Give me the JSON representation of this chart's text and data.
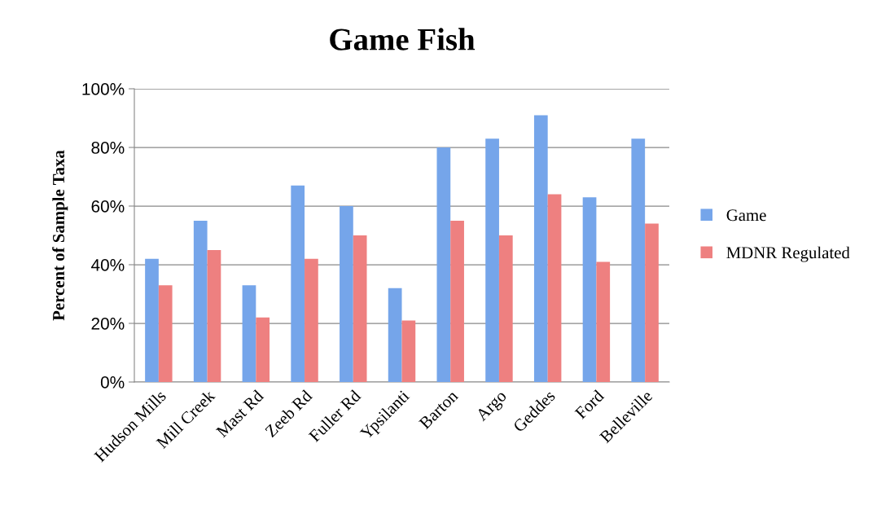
{
  "chart_data": {
    "type": "bar",
    "title": "Game Fish",
    "ylabel": "Percent of Sample Taxa",
    "categories": [
      "Hudson Mills",
      "Mill Creek",
      "Mast Rd",
      "Zeeb Rd",
      "Fuller Rd",
      "Ypsilanti",
      "Barton",
      "Argo",
      "Geddes",
      "Ford",
      "Belleville"
    ],
    "series": [
      {
        "name": "Game",
        "color": "#75a5ea",
        "values": [
          42,
          55,
          33,
          67,
          60,
          32,
          80,
          83,
          91,
          63,
          83
        ]
      },
      {
        "name": "MDNR Regulated",
        "color": "#ee8080",
        "values": [
          33,
          45,
          22,
          42,
          50,
          21,
          55,
          50,
          64,
          41,
          54
        ]
      }
    ],
    "ylim": [
      0,
      100
    ],
    "yticks": [
      {
        "value": 0,
        "label": "0%"
      },
      {
        "value": 20,
        "label": "20%"
      },
      {
        "value": 40,
        "label": "40%"
      },
      {
        "value": 60,
        "label": "60%"
      },
      {
        "value": 80,
        "label": "80%"
      },
      {
        "value": 100,
        "label": "100%"
      }
    ],
    "grid": "y",
    "legend": "right"
  }
}
